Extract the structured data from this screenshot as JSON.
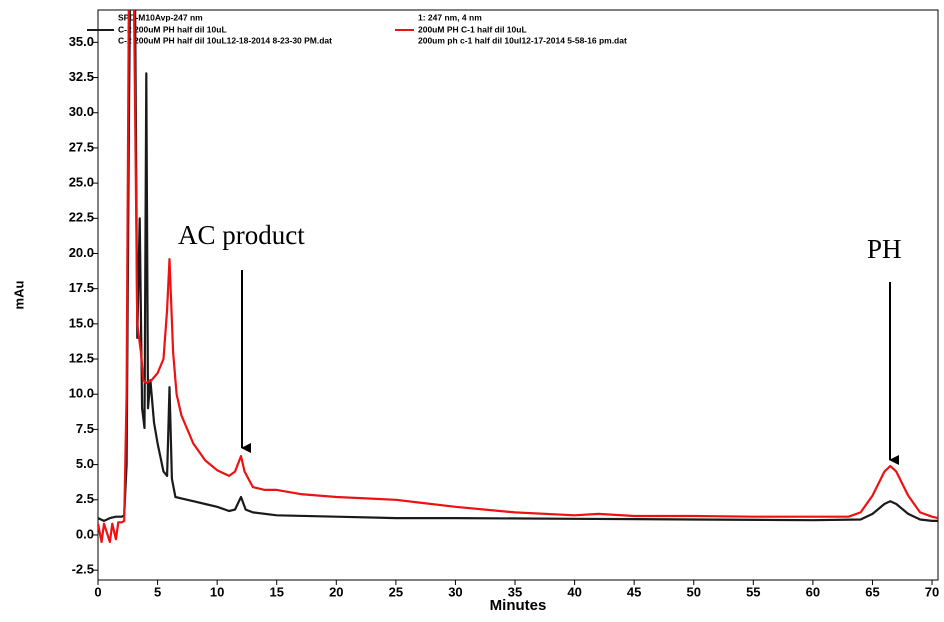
{
  "chart_data": {
    "type": "line",
    "x_label": "Minutes",
    "y_label": "mAu",
    "xlim": [
      0,
      70.5
    ],
    "ylim": [
      -3.2,
      37.3
    ],
    "xticks": [
      0,
      5,
      10,
      15,
      20,
      25,
      30,
      35,
      40,
      45,
      50,
      55,
      60,
      65,
      70
    ],
    "yticks": [
      -2.5,
      {
        "value": 0,
        "label": "0.0"
      },
      2.5,
      {
        "value": 5,
        "label": "5.0"
      },
      7.5,
      {
        "value": 10,
        "label": "10.0"
      },
      12.5,
      {
        "value": 15,
        "label": "15.0"
      },
      17.5,
      {
        "value": 20,
        "label": "20.0"
      },
      22.5,
      {
        "value": 25,
        "label": "25.0"
      },
      27.5,
      {
        "value": 30,
        "label": "30.0"
      },
      32.5,
      {
        "value": 35,
        "label": "35.0"
      }
    ],
    "annotations": [
      "AC product",
      "PH"
    ],
    "series": [
      {
        "name": "C-2 200uM PH half dil 10uL",
        "color": "#1a1a1a",
        "detector": "SPD-M10Avp-247 nm",
        "file": "C-2 200uM PH half dil 10uL12-18-2014 8-23-30 PM.dat",
        "x": [
          0,
          0.5,
          1.0,
          1.5,
          2.0,
          2.2,
          2.4,
          2.6,
          2.7,
          3.1,
          3.3,
          3.5,
          3.7,
          3.9,
          4.05,
          4.2,
          4.4,
          4.7,
          5.0,
          5.5,
          5.8,
          6.0,
          6.2,
          6.5,
          7,
          8,
          9,
          10,
          11,
          11.5,
          12,
          12.4,
          13,
          15,
          20,
          25,
          30,
          40,
          50,
          60,
          64,
          65,
          66,
          66.5,
          67,
          68,
          69,
          70,
          70.5
        ],
        "values": [
          1.2,
          1.0,
          1.2,
          1.3,
          1.3,
          1.4,
          5,
          30,
          40,
          40,
          14,
          22.5,
          9,
          7.6,
          32.8,
          9,
          11,
          8,
          6.5,
          4.5,
          4.2,
          10.5,
          4,
          2.7,
          2.6,
          2.4,
          2.2,
          2.0,
          1.7,
          1.8,
          2.7,
          1.8,
          1.6,
          1.4,
          1.3,
          1.2,
          1.2,
          1.15,
          1.1,
          1.05,
          1.1,
          1.5,
          2.2,
          2.4,
          2.2,
          1.5,
          1.1,
          1.0,
          1.0
        ]
      },
      {
        "name": "200uM PH C-1 half dil 10uL",
        "color": "#ee1111",
        "detector": "1: 247 nm, 4 nm",
        "file": "200um ph c-1 half dil 10ul12-17-2014 5-58-16 pm.dat",
        "x": [
          0,
          0.3,
          0.5,
          1.0,
          1.2,
          1.5,
          1.7,
          2.0,
          2.2,
          2.4,
          2.6,
          3.0,
          3.3,
          3.6,
          3.8,
          4.0,
          4.5,
          5.0,
          5.5,
          5.8,
          6.0,
          6.3,
          6.6,
          7,
          8,
          9,
          10,
          11,
          11.5,
          12,
          12.3,
          13,
          14,
          15,
          17,
          20,
          25,
          27,
          30,
          35,
          40,
          42,
          45,
          50,
          55,
          60,
          63,
          64,
          65,
          66,
          66.5,
          67,
          68,
          69,
          70,
          70.5
        ],
        "values": [
          0.8,
          -0.5,
          0.8,
          -0.5,
          0.8,
          -0.3,
          0.9,
          0.9,
          1.0,
          10,
          40,
          40,
          15,
          13,
          11,
          10.8,
          11,
          11.5,
          12.5,
          16,
          19.6,
          13,
          10,
          8.5,
          6.5,
          5.3,
          4.6,
          4.2,
          4.5,
          5.6,
          4.5,
          3.4,
          3.2,
          3.2,
          2.9,
          2.7,
          2.5,
          2.3,
          2.0,
          1.6,
          1.4,
          1.5,
          1.35,
          1.35,
          1.3,
          1.3,
          1.3,
          1.6,
          2.8,
          4.5,
          4.9,
          4.5,
          2.8,
          1.6,
          1.3,
          1.2
        ]
      }
    ]
  }
}
